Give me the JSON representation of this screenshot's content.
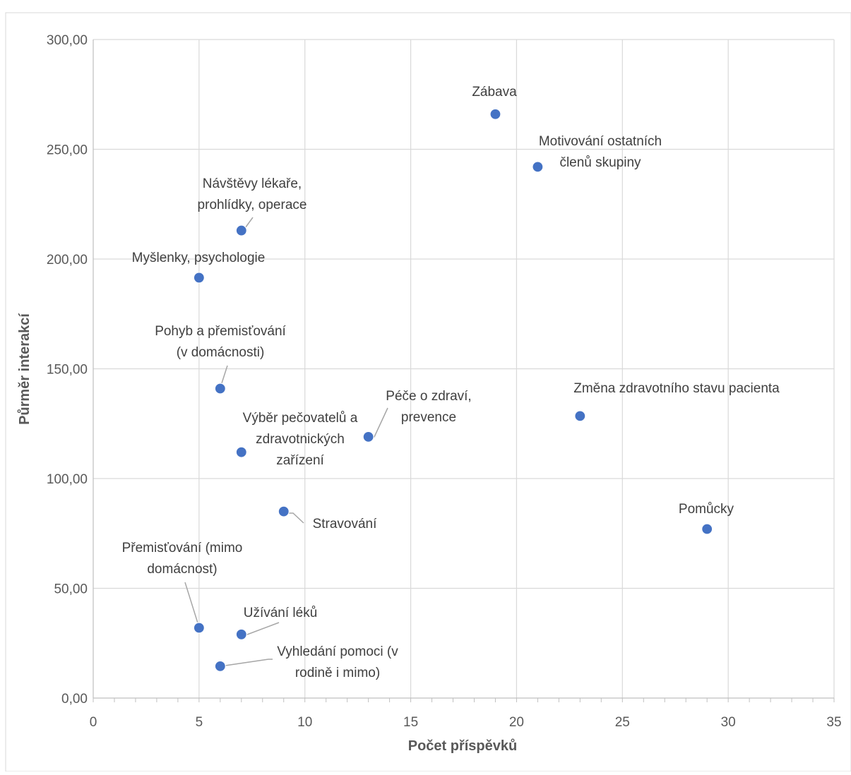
{
  "chart_data": {
    "type": "scatter",
    "title": "",
    "xlabel": "Počet příspěvků",
    "ylabel": "Půrměr interakcí",
    "xlim": [
      0,
      35
    ],
    "ylim": [
      0,
      300
    ],
    "x_ticks": [
      "0",
      "5",
      "10",
      "15",
      "20",
      "25",
      "30",
      "35"
    ],
    "y_ticks": [
      "0,00",
      "50,00",
      "100,00",
      "150,00",
      "200,00",
      "250,00",
      "300,00"
    ],
    "x_tick_values": [
      0,
      5,
      10,
      15,
      20,
      25,
      30,
      35
    ],
    "y_tick_values": [
      0,
      50,
      100,
      150,
      200,
      250,
      300
    ],
    "grid": true,
    "legend": "none",
    "marker_color": "#4472c4",
    "points": [
      {
        "label": [
          "Zábava"
        ],
        "x": 19,
        "y": 266
      },
      {
        "label": [
          "Motivování ostatních",
          "členů skupiny"
        ],
        "x": 21,
        "y": 242
      },
      {
        "label": [
          "Návštěvy lékaře,",
          "prohlídky, operace"
        ],
        "x": 7,
        "y": 213
      },
      {
        "label": [
          "Myšlenky, psychologie"
        ],
        "x": 5,
        "y": 191.5
      },
      {
        "label": [
          "Pohyb a přemisťování",
          "(v domácnosti)"
        ],
        "x": 6,
        "y": 141
      },
      {
        "label": [
          "Změna zdravotního stavu pacienta"
        ],
        "x": 23,
        "y": 128.5
      },
      {
        "label": [
          "Péče o zdraví,",
          "prevence"
        ],
        "x": 13,
        "y": 119
      },
      {
        "label": [
          "Výběr pečovatelů a",
          "zdravotnických",
          "zařízení"
        ],
        "x": 7,
        "y": 112
      },
      {
        "label": [
          "Stravování"
        ],
        "x": 9,
        "y": 85
      },
      {
        "label": [
          "Pomůcky"
        ],
        "x": 29,
        "y": 77
      },
      {
        "label": [
          "Přemisťování (mimo",
          "domácnost)"
        ],
        "x": 5,
        "y": 32
      },
      {
        "label": [
          "Užívání léků"
        ],
        "x": 7,
        "y": 29
      },
      {
        "label": [
          "Vyhledání pomoci (v",
          "rodině i mimo)"
        ],
        "x": 6,
        "y": 14.5
      }
    ]
  }
}
